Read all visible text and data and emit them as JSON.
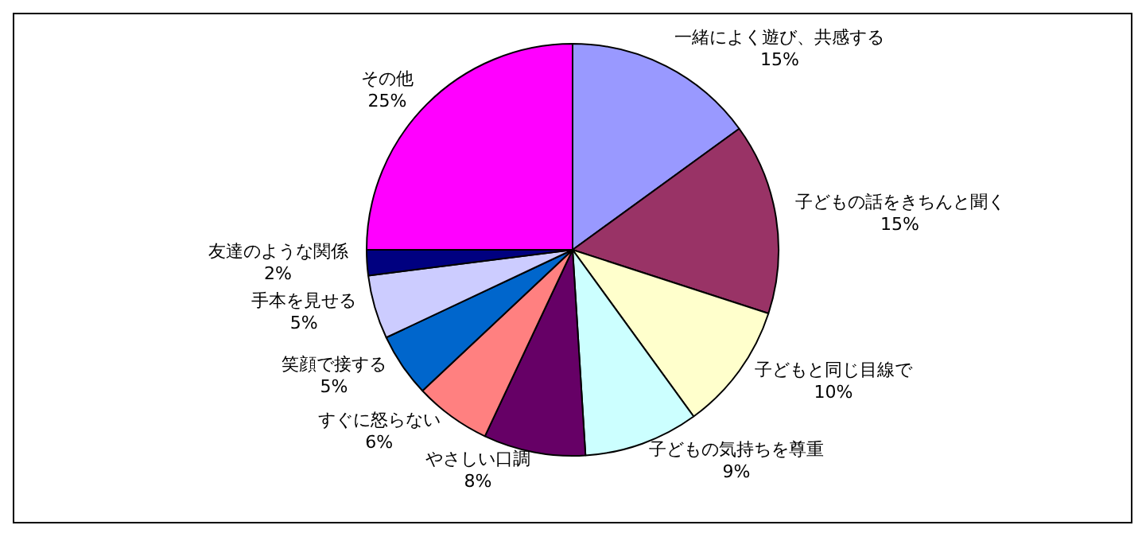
{
  "chart_data": {
    "type": "pie",
    "categories": [
      "一緒によく遊び、共感する",
      "子どもの話をきちんと聞く",
      "子どもと同じ目線で",
      "子どもの気持ちを尊重",
      "やさしい口調",
      "すぐに怒らない",
      "笑顔で接する",
      "手本を見せる",
      "友達のような関係",
      "その他"
    ],
    "values": [
      15,
      15,
      10,
      9,
      8,
      6,
      5,
      5,
      2,
      25
    ],
    "value_labels": [
      "15%",
      "15%",
      "10%",
      "9%",
      "8%",
      "6%",
      "5%",
      "5%",
      "2%",
      "25%"
    ],
    "colors": [
      "#9999ff",
      "#993366",
      "#ffffcc",
      "#ccffff",
      "#660066",
      "#ff8080",
      "#0066cc",
      "#ccccff",
      "#000080",
      "#ff00ff"
    ],
    "legend": false
  }
}
